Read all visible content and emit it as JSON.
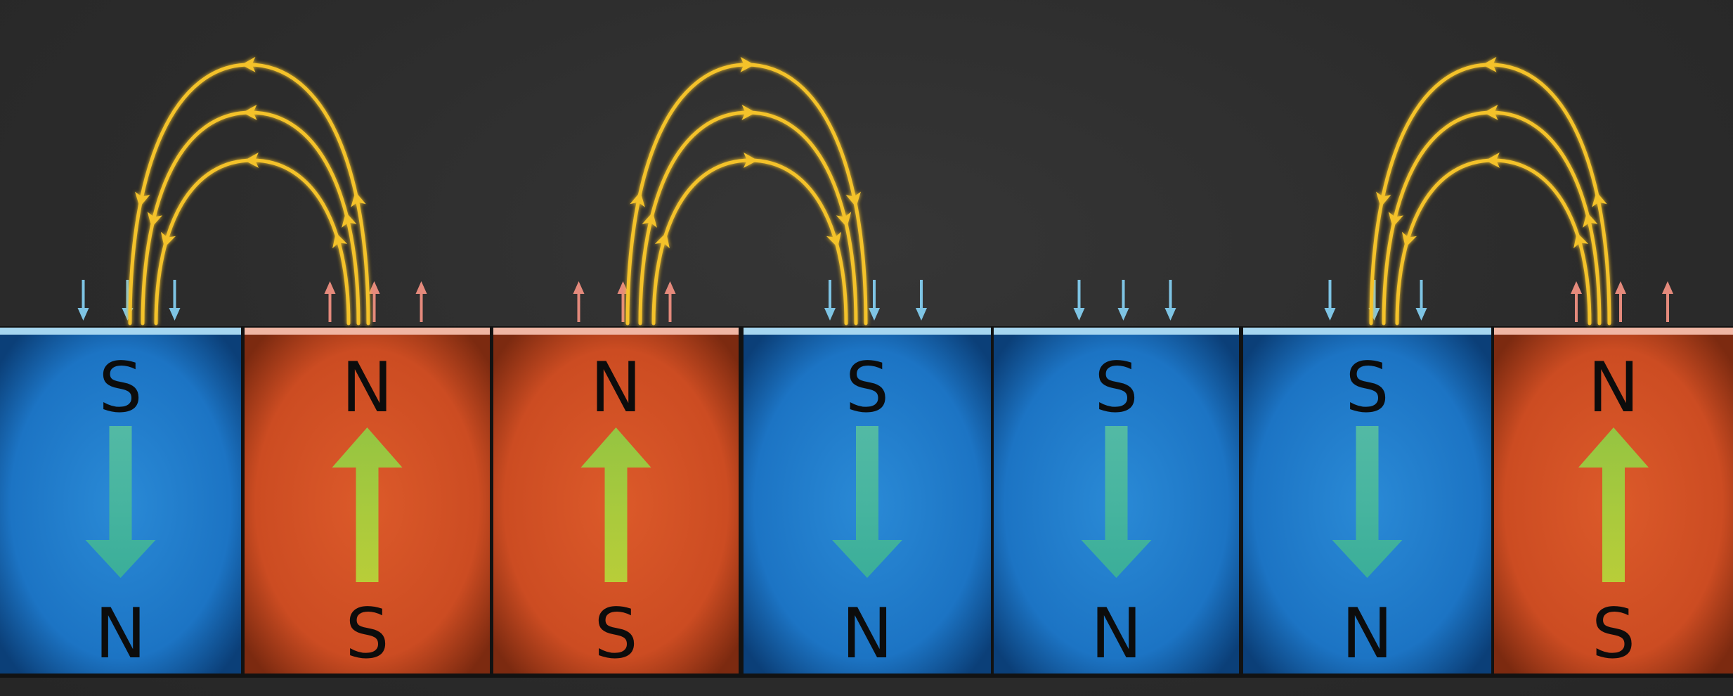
{
  "diagram": {
    "colors": {
      "background": "#2b2b2b",
      "south_up_magnet": "#1f7fd0",
      "north_up_magnet": "#d5552a",
      "field_line": "#f4c22a",
      "inward_arrow": "#7ec4e4",
      "outward_arrow": "#e58a7c",
      "magnetization_arrow": "#6fcf4a"
    },
    "magnets": [
      {
        "top_pole": "S",
        "bottom_pole": "N",
        "magnetization": "down"
      },
      {
        "top_pole": "N",
        "bottom_pole": "S",
        "magnetization": "up"
      },
      {
        "top_pole": "N",
        "bottom_pole": "S",
        "magnetization": "up"
      },
      {
        "top_pole": "S",
        "bottom_pole": "N",
        "magnetization": "down"
      },
      {
        "top_pole": "S",
        "bottom_pole": "N",
        "magnetization": "down"
      },
      {
        "top_pole": "S",
        "bottom_pole": "N",
        "magnetization": "down"
      },
      {
        "top_pole": "N",
        "bottom_pole": "S",
        "magnetization": "up"
      }
    ],
    "field_loops": [
      {
        "between_magnets": [
          0,
          1
        ],
        "flow": "from magnet 2 to magnet 1"
      },
      {
        "between_magnets": [
          2,
          3
        ],
        "flow": "from magnet 3 to magnet 4"
      },
      {
        "between_magnets": [
          5,
          6
        ],
        "flow": "from magnet 7 to magnet 6"
      }
    ]
  }
}
